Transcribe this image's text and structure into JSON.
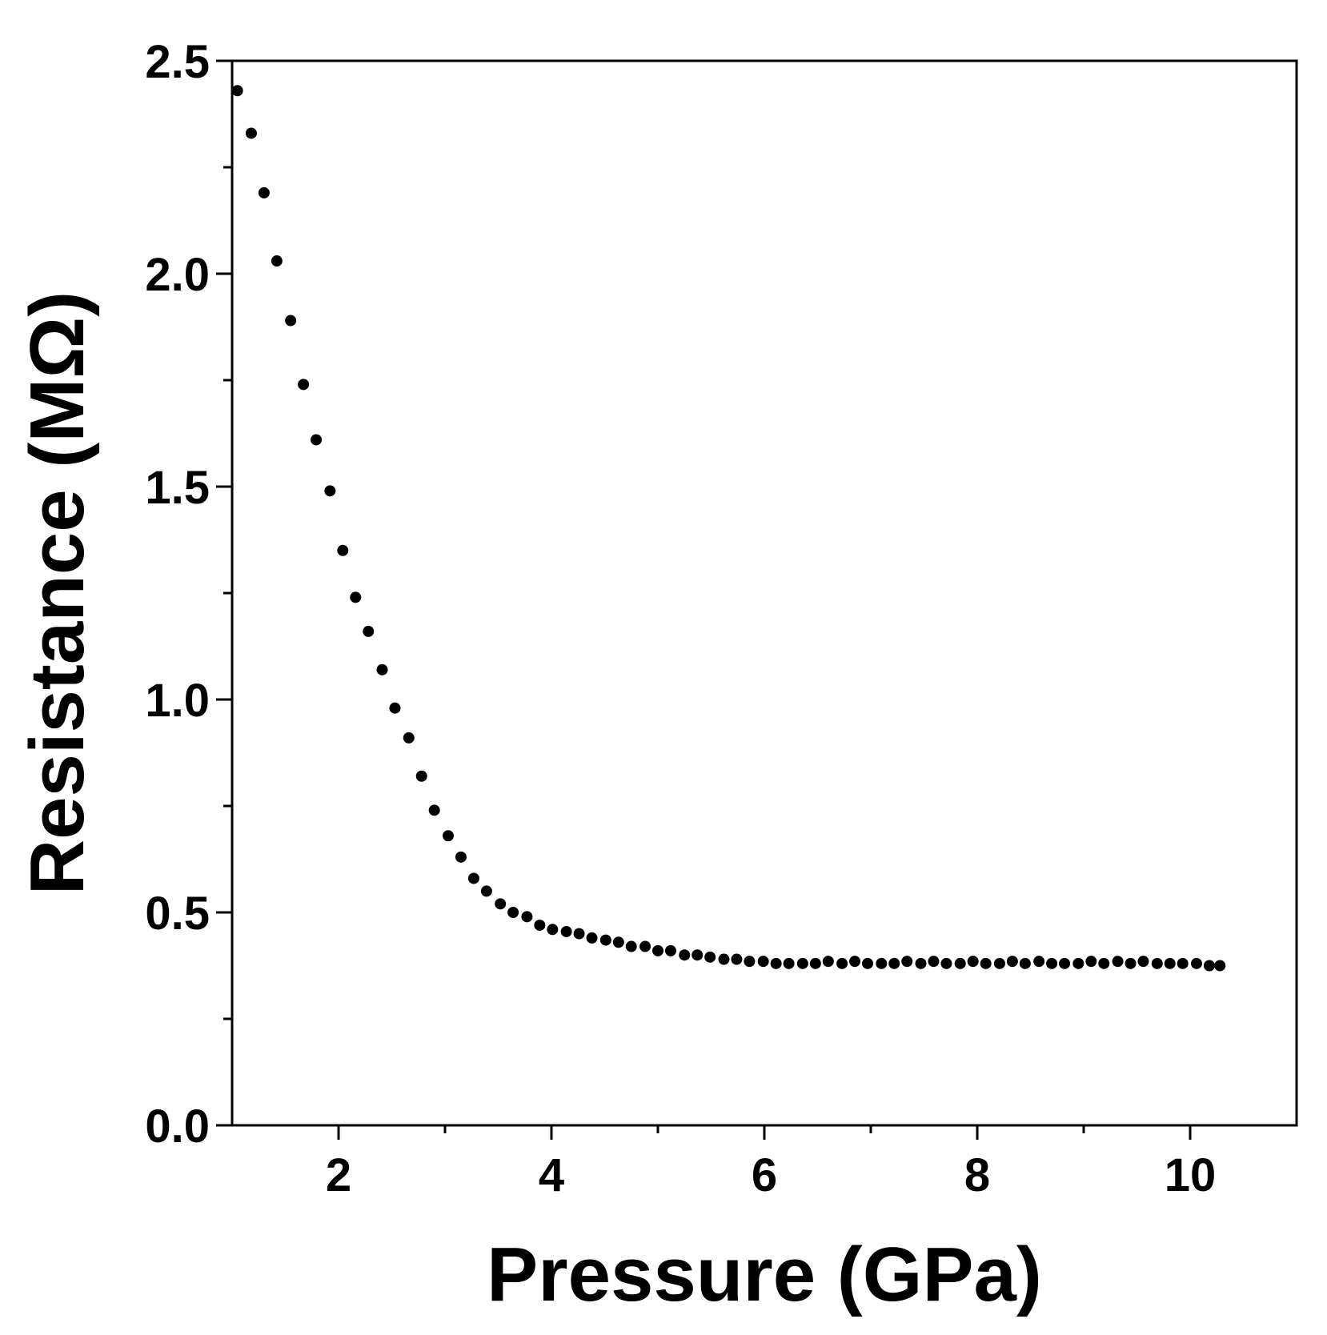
{
  "chart_data": {
    "type": "scatter",
    "title": "",
    "xlabel": "Pressure (GPa)",
    "ylabel": "Resistance (MΩ)",
    "xlim": [
      1.0,
      11.0
    ],
    "ylim": [
      0.0,
      2.5
    ],
    "xticks": [
      2,
      4,
      6,
      8,
      10
    ],
    "xtick_labels": [
      "2",
      "4",
      "6",
      "8",
      "10"
    ],
    "x_minor_ticks": [
      3,
      5,
      7,
      9
    ],
    "yticks": [
      0.0,
      0.5,
      1.0,
      1.5,
      2.0,
      2.5
    ],
    "ytick_labels": [
      "0.0",
      "0.5",
      "1.0",
      "1.5",
      "2.0",
      "2.5"
    ],
    "y_minor_ticks": [
      0.25,
      0.75,
      1.25,
      1.75,
      2.25
    ],
    "grid": false,
    "legend": false,
    "marker_color": "#000000",
    "series": [
      {
        "x": [
          1.05,
          1.18,
          1.3,
          1.42,
          1.55,
          1.67,
          1.79,
          1.92,
          2.04,
          2.16,
          2.28,
          2.41,
          2.53,
          2.66,
          2.78,
          2.9,
          3.03,
          3.15,
          3.27,
          3.39,
          3.52,
          3.64,
          3.77,
          3.89,
          4.01,
          4.14,
          4.26,
          4.38,
          4.51,
          4.63,
          4.75,
          4.88,
          5.0,
          5.12,
          5.25,
          5.37,
          5.49,
          5.62,
          5.74,
          5.86,
          5.99,
          6.11,
          6.23,
          6.36,
          6.48,
          6.6,
          6.73,
          6.85,
          6.97,
          7.1,
          7.22,
          7.34,
          7.47,
          7.59,
          7.71,
          7.84,
          7.96,
          8.08,
          8.21,
          8.33,
          8.45,
          8.58,
          8.7,
          8.82,
          8.95,
          9.07,
          9.19,
          9.32,
          9.44,
          9.56,
          9.69,
          9.81,
          9.93,
          10.06,
          10.18,
          10.28
        ],
        "y": [
          2.43,
          2.33,
          2.19,
          2.03,
          1.89,
          1.74,
          1.61,
          1.49,
          1.35,
          1.24,
          1.16,
          1.07,
          0.98,
          0.91,
          0.82,
          0.74,
          0.68,
          0.63,
          0.58,
          0.55,
          0.52,
          0.5,
          0.49,
          0.47,
          0.46,
          0.455,
          0.45,
          0.44,
          0.435,
          0.43,
          0.42,
          0.42,
          0.41,
          0.41,
          0.4,
          0.4,
          0.395,
          0.39,
          0.39,
          0.385,
          0.385,
          0.38,
          0.38,
          0.38,
          0.38,
          0.385,
          0.38,
          0.385,
          0.38,
          0.38,
          0.38,
          0.385,
          0.38,
          0.385,
          0.38,
          0.38,
          0.385,
          0.38,
          0.38,
          0.385,
          0.38,
          0.385,
          0.38,
          0.38,
          0.38,
          0.385,
          0.38,
          0.385,
          0.38,
          0.385,
          0.38,
          0.38,
          0.38,
          0.38,
          0.375,
          0.375
        ]
      }
    ]
  }
}
